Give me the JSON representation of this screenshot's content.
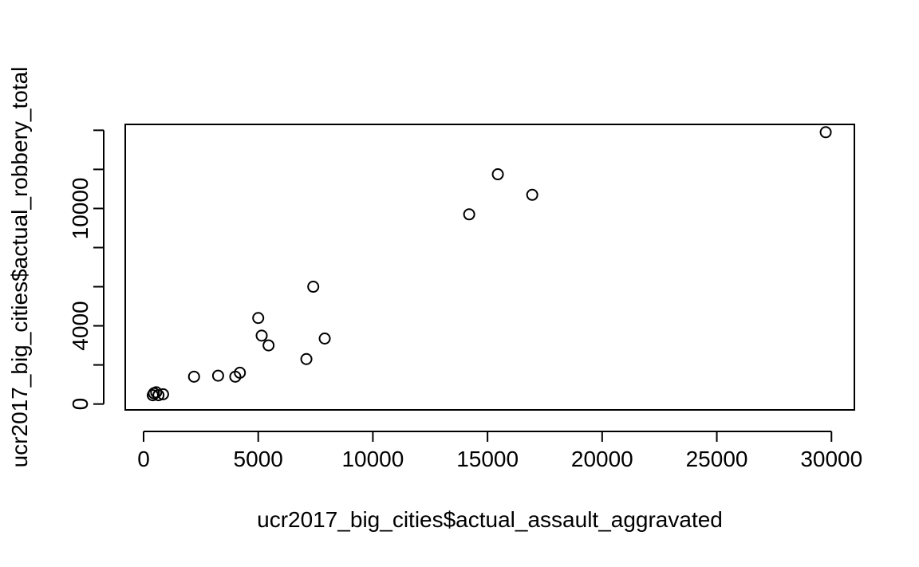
{
  "chart_data": {
    "type": "scatter",
    "title": "",
    "xlabel": "ucr2017_big_cities$actual_assault_aggravated",
    "ylabel": "ucr2017_big_cities$actual_robbery_total",
    "xlim": [
      -800,
      31000
    ],
    "ylim": [
      -300,
      14300
    ],
    "x_ticks": [
      0,
      5000,
      10000,
      15000,
      20000,
      25000,
      30000
    ],
    "x_tick_labels": [
      "0",
      "5000",
      "10000",
      "15000",
      "20000",
      "25000",
      "30000"
    ],
    "y_ticks": [
      0,
      2000,
      4000,
      6000,
      8000,
      10000,
      12000,
      14000
    ],
    "y_tick_labels": [
      "0",
      "",
      "4000",
      "",
      "",
      "10000",
      "",
      ""
    ],
    "grid": false,
    "legend": "none",
    "point_style": "open-circle",
    "colors": {
      "points": "#000000",
      "axes": "#000000",
      "background": "#ffffff"
    },
    "points": [
      {
        "x": 29750,
        "y": 13900
      },
      {
        "x": 15450,
        "y": 11750
      },
      {
        "x": 16950,
        "y": 10700
      },
      {
        "x": 14200,
        "y": 9700
      },
      {
        "x": 7400,
        "y": 6000
      },
      {
        "x": 5000,
        "y": 4400
      },
      {
        "x": 5150,
        "y": 3500
      },
      {
        "x": 5450,
        "y": 3000
      },
      {
        "x": 7900,
        "y": 3350
      },
      {
        "x": 7100,
        "y": 2300
      },
      {
        "x": 4200,
        "y": 1600
      },
      {
        "x": 4000,
        "y": 1400
      },
      {
        "x": 3250,
        "y": 1450
      },
      {
        "x": 2200,
        "y": 1400
      },
      {
        "x": 850,
        "y": 500
      },
      {
        "x": 650,
        "y": 450
      },
      {
        "x": 550,
        "y": 600
      },
      {
        "x": 450,
        "y": 550
      },
      {
        "x": 400,
        "y": 450
      }
    ]
  }
}
